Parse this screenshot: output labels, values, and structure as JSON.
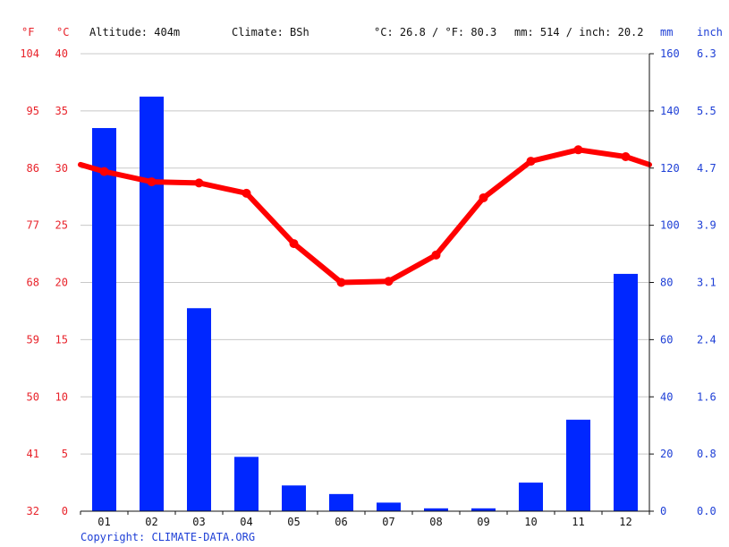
{
  "header": {
    "unit_f": "°F",
    "unit_c": "°C",
    "altitude": "Altitude: 404m",
    "climate": "Climate: BSh",
    "temp_avg": "°C: 26.8 / °F: 80.3",
    "precip_total": "mm: 514 / inch: 20.2",
    "unit_mm": "mm",
    "unit_inch": "inch"
  },
  "footer": {
    "copyright": "Copyright: CLIMATE-DATA.ORG"
  },
  "colors": {
    "temperature": "#ff0000",
    "precipitation": "#0027ff",
    "left_axis_text": "#e8222a",
    "right_axis_text": "#1e3fd6"
  },
  "chart_data": {
    "type": "bar",
    "categories": [
      "01",
      "02",
      "03",
      "04",
      "05",
      "06",
      "07",
      "08",
      "09",
      "10",
      "11",
      "12"
    ],
    "temp_ylim": [
      0,
      40
    ],
    "precip_ylim": [
      0,
      160
    ],
    "left_ticks_c": [
      "40",
      "35",
      "30",
      "25",
      "20",
      "15",
      "10",
      "5",
      "0"
    ],
    "left_ticks_f": [
      "104",
      "95",
      "86",
      "77",
      "68",
      "59",
      "50",
      "41",
      "32"
    ],
    "right_ticks_mm": [
      "160",
      "140",
      "120",
      "100",
      "80",
      "60",
      "40",
      "20",
      "0"
    ],
    "right_ticks_inch": [
      "6.3",
      "5.5",
      "4.7",
      "3.9",
      "3.1",
      "2.4",
      "1.6",
      "0.8",
      "0.0"
    ],
    "grid": true,
    "series": [
      {
        "type": "bar",
        "values": [
          134,
          145,
          71,
          19,
          9,
          6,
          3,
          1,
          1,
          10,
          32,
          83
        ]
      },
      {
        "type": "line",
        "values": [
          29.7,
          28.8,
          28.7,
          27.8,
          23.4,
          20.0,
          20.1,
          22.4,
          27.4,
          30.6,
          31.6,
          31.0
        ],
        "edge_left": 30.3,
        "edge_right": 30.3
      }
    ]
  }
}
